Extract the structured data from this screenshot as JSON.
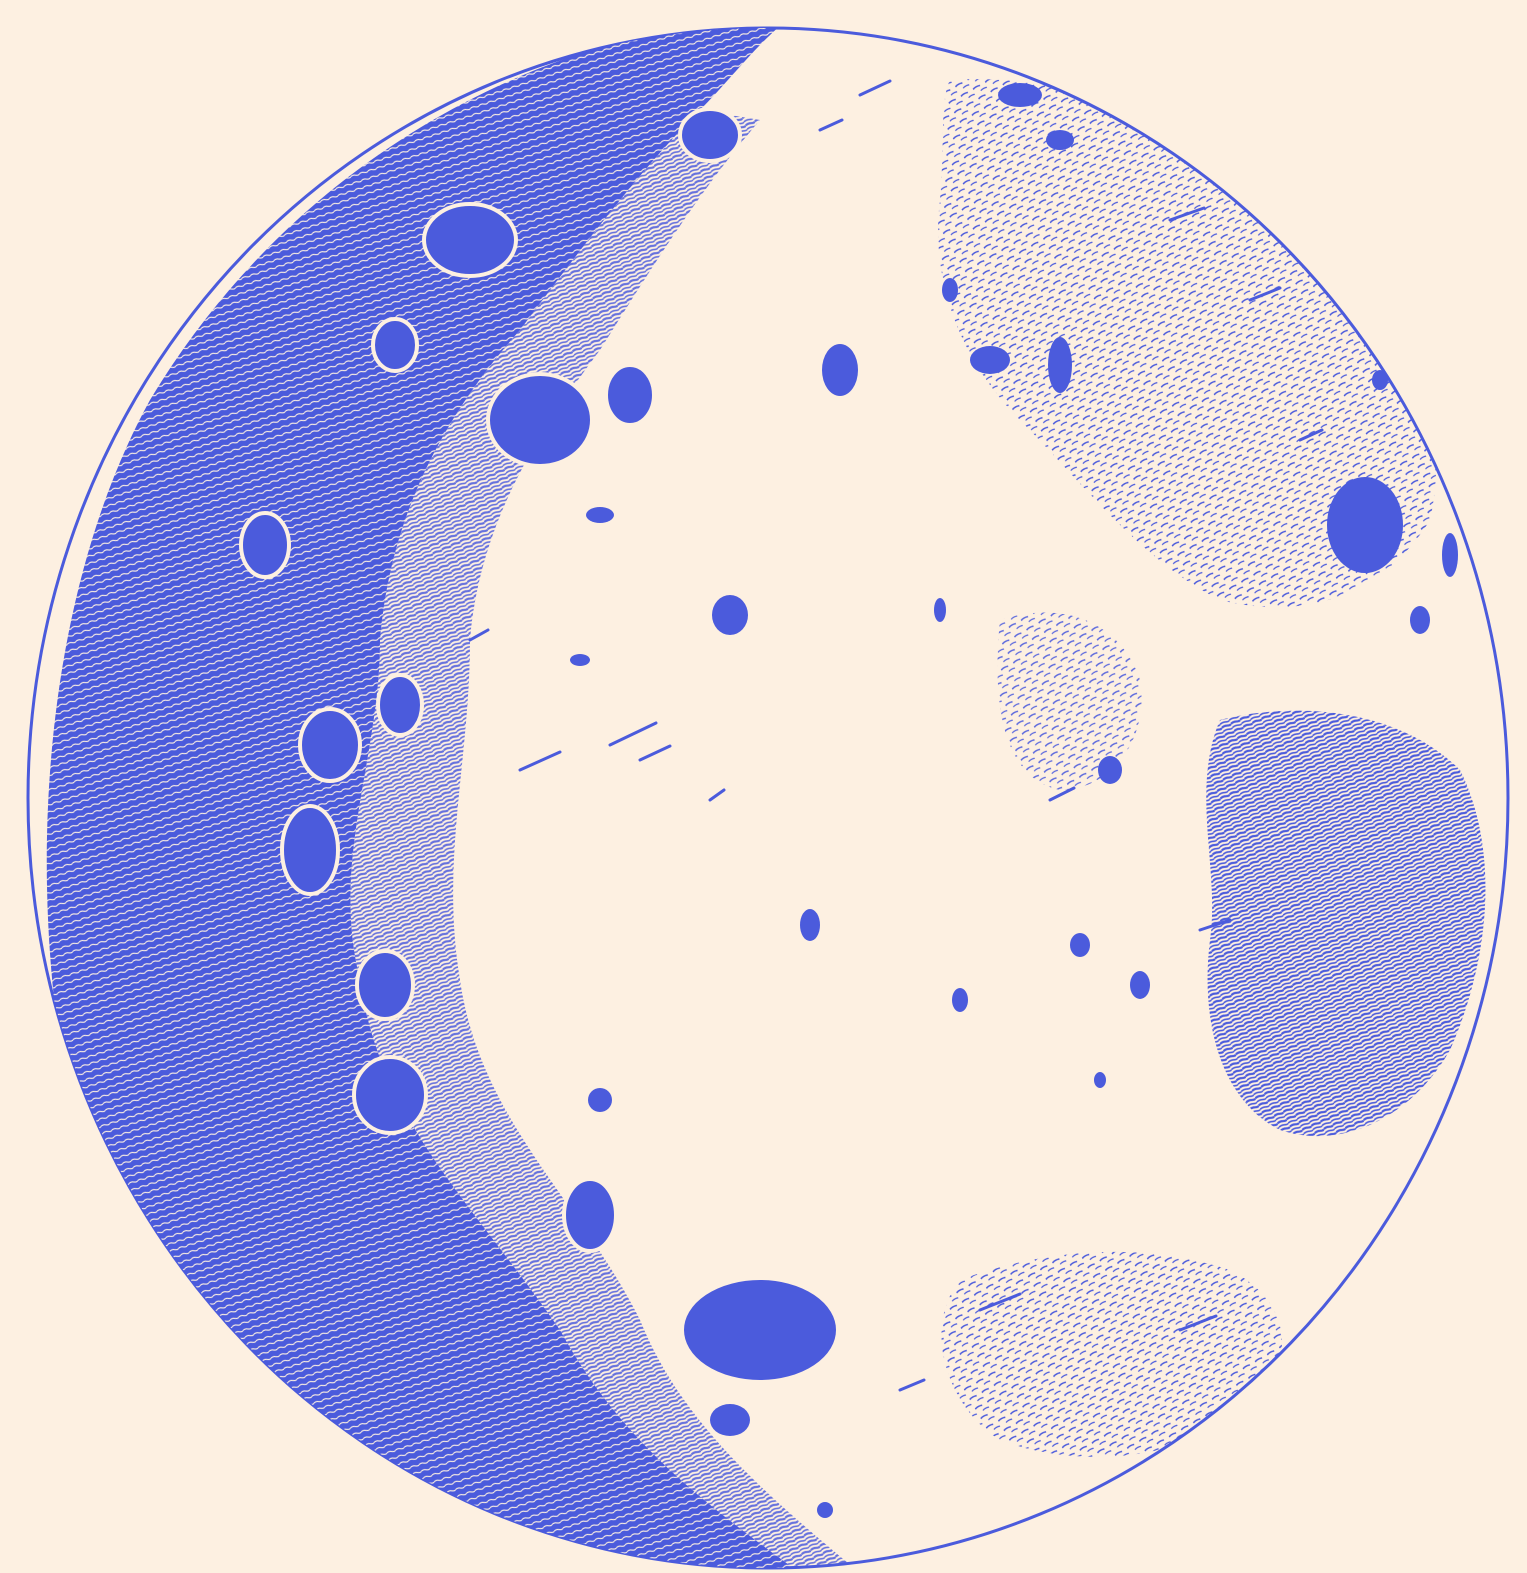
{
  "artwork": {
    "subject": "moon-engraving",
    "colors": {
      "background": "#fdf0e1",
      "ink": "#4b5bdc"
    }
  }
}
